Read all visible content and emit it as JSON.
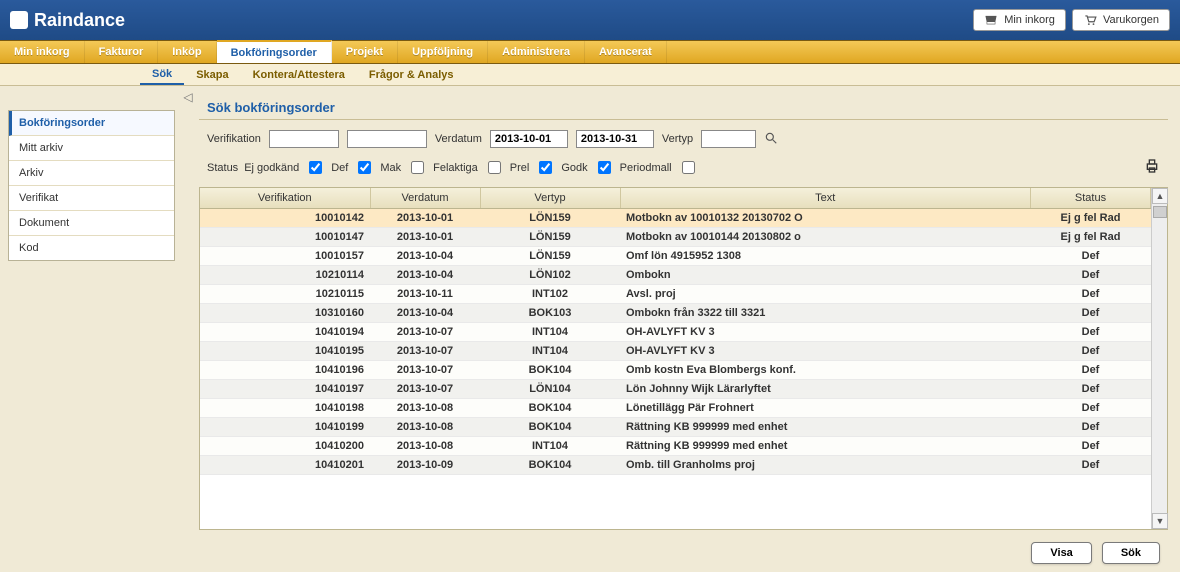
{
  "brand": "Raindance",
  "top_buttons": {
    "inbox": "Min inkorg",
    "cart": "Varukorgen"
  },
  "menu": [
    {
      "label": "Min inkorg",
      "active": false
    },
    {
      "label": "Fakturor",
      "active": false
    },
    {
      "label": "Inköp",
      "active": false
    },
    {
      "label": "Bokföringsorder",
      "active": true
    },
    {
      "label": "Projekt",
      "active": false
    },
    {
      "label": "Uppföljning",
      "active": false
    },
    {
      "label": "Administrera",
      "active": false
    },
    {
      "label": "Avancerat",
      "active": false
    }
  ],
  "submenu": [
    {
      "label": "Sök",
      "active": true
    },
    {
      "label": "Skapa",
      "active": false
    },
    {
      "label": "Kontera/Attestera",
      "active": false
    },
    {
      "label": "Frågor & Analys",
      "active": false
    }
  ],
  "sidebar": [
    {
      "label": "Bokföringsorder",
      "active": true
    },
    {
      "label": "Mitt arkiv",
      "active": false
    },
    {
      "label": "Arkiv",
      "active": false
    },
    {
      "label": "Verifikat",
      "active": false
    },
    {
      "label": "Dokument",
      "active": false
    },
    {
      "label": "Kod",
      "active": false
    }
  ],
  "page_title": "Sök bokföringsorder",
  "filters": {
    "verifikation_label": "Verifikation",
    "ver1": "",
    "ver2": "",
    "verdatum_label": "Verdatum",
    "date_from": "2013-10-01",
    "date_to": "2013-10-31",
    "vertyp_label": "Vertyp",
    "vertyp": ""
  },
  "status_label": "Status",
  "status_checks": [
    {
      "label": "Ej godkänd",
      "checked": true
    },
    {
      "label": "Def",
      "checked": true
    },
    {
      "label": "Mak",
      "checked": false
    },
    {
      "label": "Felaktiga",
      "checked": false
    },
    {
      "label": "Prel",
      "checked": true
    },
    {
      "label": "Godk",
      "checked": true
    },
    {
      "label": "Periodmall",
      "checked": false
    }
  ],
  "columns": {
    "ver": "Verifikation",
    "date": "Verdatum",
    "typ": "Vertyp",
    "text": "Text",
    "status": "Status"
  },
  "rows": [
    {
      "ver": "10010142",
      "date": "2013-10-01",
      "typ": "LÖN159",
      "text": "Motbokn av 10010132 20130702 O",
      "status": "Ej g fel Rad",
      "hl": true
    },
    {
      "ver": "10010147",
      "date": "2013-10-01",
      "typ": "LÖN159",
      "text": "Motbokn av 10010144 20130802 o",
      "status": "Ej g fel Rad"
    },
    {
      "ver": "10010157",
      "date": "2013-10-04",
      "typ": "LÖN159",
      "text": "Omf lön 4915952 1308",
      "status": "Def"
    },
    {
      "ver": "10210114",
      "date": "2013-10-04",
      "typ": "LÖN102",
      "text": "Ombokn",
      "status": "Def"
    },
    {
      "ver": "10210115",
      "date": "2013-10-11",
      "typ": "INT102",
      "text": "Avsl. proj",
      "status": "Def"
    },
    {
      "ver": "10310160",
      "date": "2013-10-04",
      "typ": "BOK103",
      "text": "Ombokn från 3322 till 3321",
      "status": "Def"
    },
    {
      "ver": "10410194",
      "date": "2013-10-07",
      "typ": "INT104",
      "text": "OH-AVLYFT KV 3",
      "status": "Def"
    },
    {
      "ver": "10410195",
      "date": "2013-10-07",
      "typ": "INT104",
      "text": "OH-AVLYFT KV 3",
      "status": "Def"
    },
    {
      "ver": "10410196",
      "date": "2013-10-07",
      "typ": "BOK104",
      "text": "Omb kostn Eva Blombergs konf.",
      "status": "Def"
    },
    {
      "ver": "10410197",
      "date": "2013-10-07",
      "typ": "LÖN104",
      "text": "Lön Johnny Wijk Lärarlyftet",
      "status": "Def"
    },
    {
      "ver": "10410198",
      "date": "2013-10-08",
      "typ": "BOK104",
      "text": "Lönetillägg Pär Frohnert",
      "status": "Def"
    },
    {
      "ver": "10410199",
      "date": "2013-10-08",
      "typ": "BOK104",
      "text": "Rättning KB 999999 med enhet",
      "status": "Def"
    },
    {
      "ver": "10410200",
      "date": "2013-10-08",
      "typ": "INT104",
      "text": "Rättning KB 999999 med enhet",
      "status": "Def"
    },
    {
      "ver": "10410201",
      "date": "2013-10-09",
      "typ": "BOK104",
      "text": "Omb. till Granholms proj",
      "status": "Def"
    }
  ],
  "buttons": {
    "show": "Visa",
    "search": "Sök"
  }
}
